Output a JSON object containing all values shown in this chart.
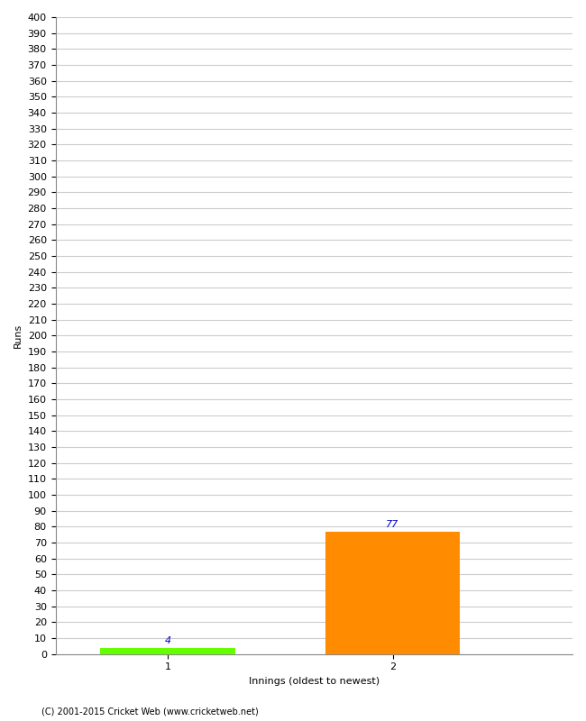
{
  "categories": [
    "1",
    "2"
  ],
  "values": [
    4,
    77
  ],
  "bar_colors": [
    "#66ff00",
    "#ff8c00"
  ],
  "xlabel": "Innings (oldest to newest)",
  "ylabel": "Runs",
  "ylim": [
    0,
    400
  ],
  "ytick_interval": 10,
  "background_color": "#ffffff",
  "grid_color": "#cccccc",
  "annotation_color": "#0000cc",
  "annotation_fontsize": 8,
  "axis_label_fontsize": 8,
  "tick_fontsize": 8,
  "footer": "(C) 2001-2015 Cricket Web (www.cricketweb.net)"
}
